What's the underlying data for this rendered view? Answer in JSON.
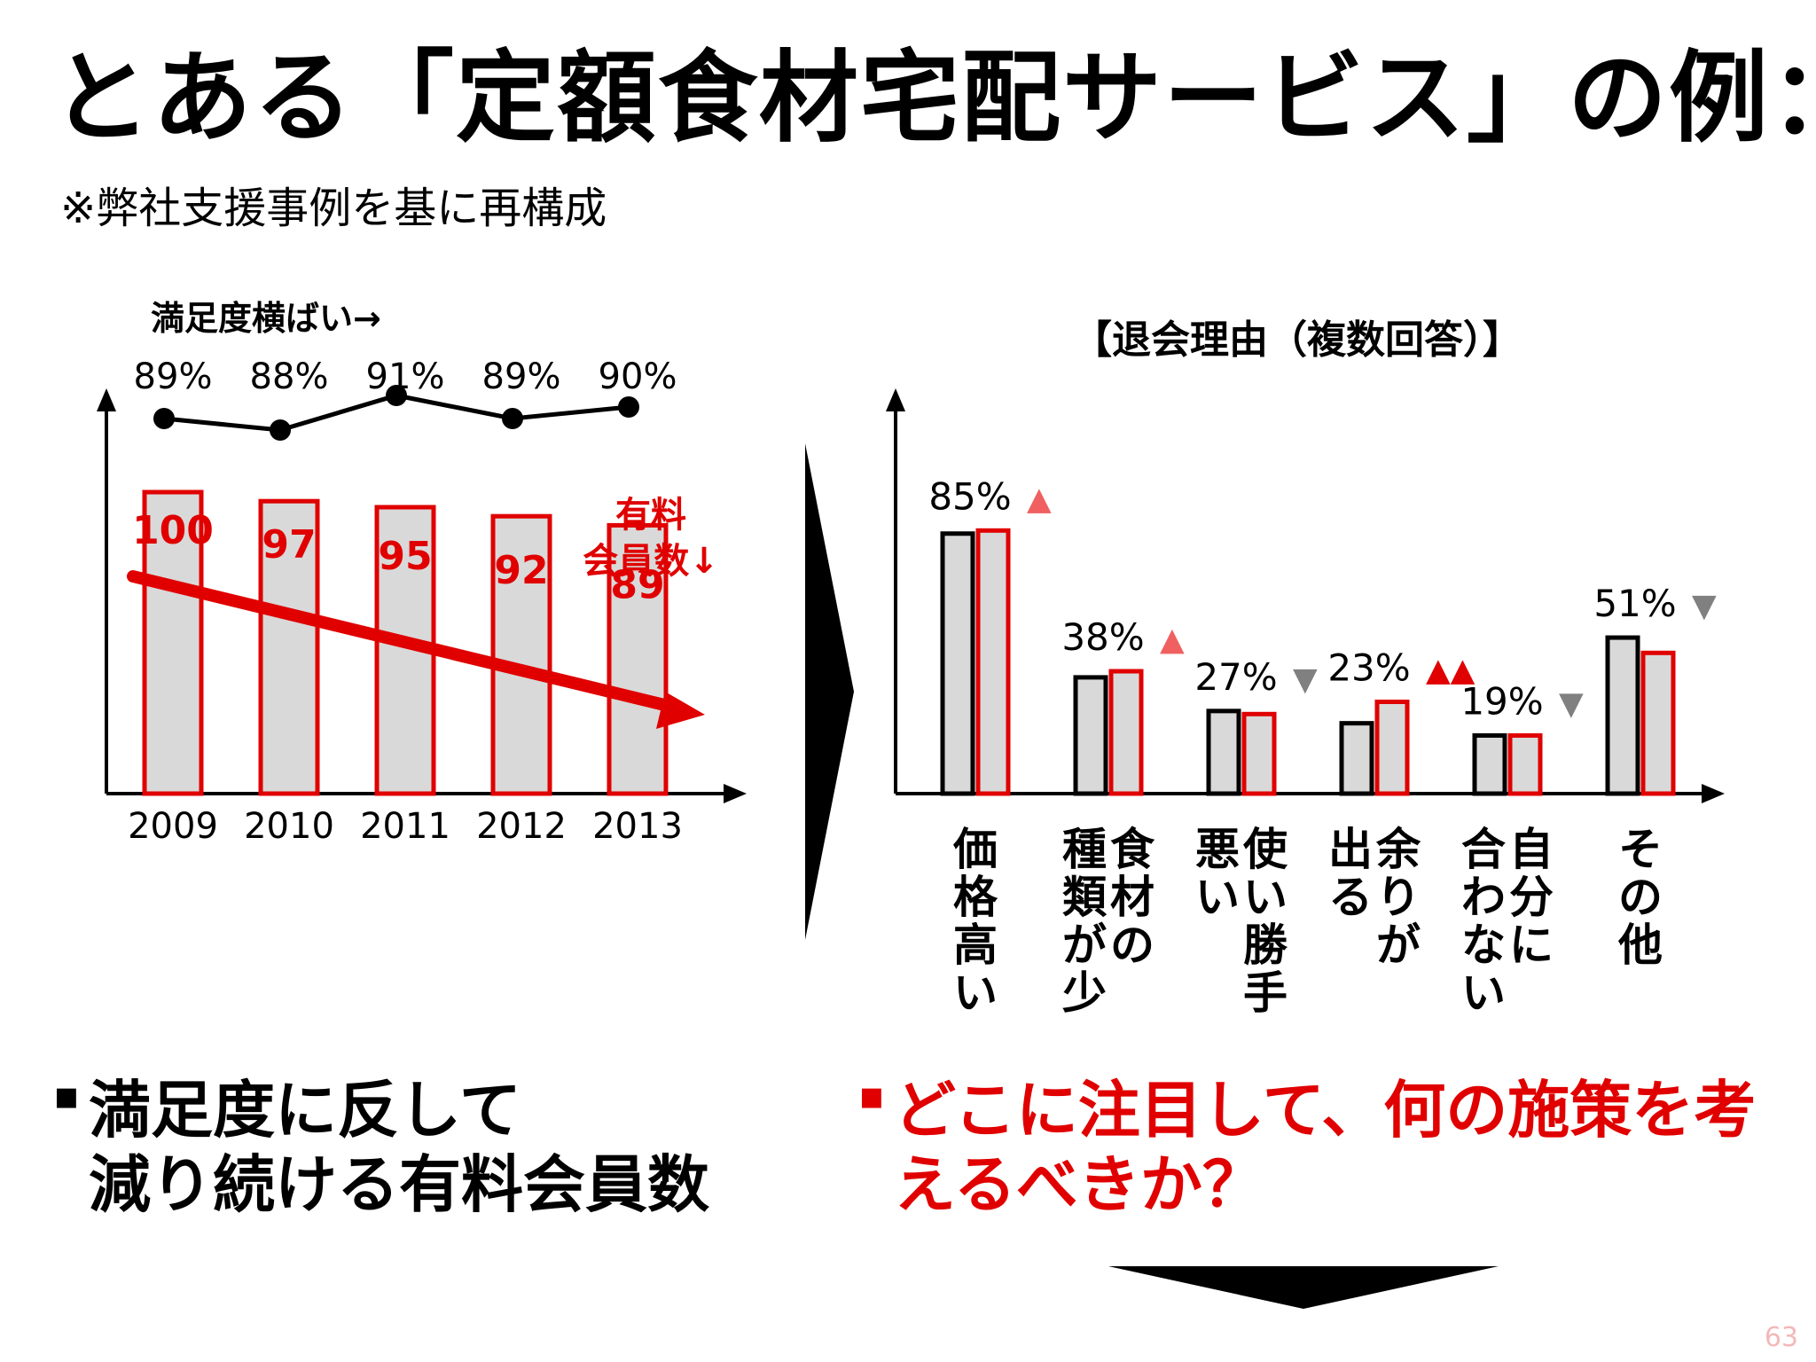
{
  "title": "とある「定額食材宅配サービス」の例：",
  "subtitle": "※弊社支援事例を基に再構成",
  "chart_data": [
    {
      "type": "bar",
      "title": "満足度横ばい→",
      "categories": [
        "2009",
        "2010",
        "2011",
        "2012",
        "2013"
      ],
      "series": [
        {
          "name": "有料会員数↓",
          "values": [
            100,
            97,
            95,
            92,
            89
          ],
          "color": "#e00000"
        }
      ],
      "line": {
        "values": [
          89,
          88,
          91,
          89,
          90
        ],
        "labels": [
          "89%",
          "88%",
          "91%",
          "89%",
          "90%"
        ],
        "color": "#000000"
      },
      "trend_label": "有料会員数↓",
      "ylim": [
        0,
        100
      ]
    },
    {
      "type": "bar",
      "title": "【退会理由（複数回答）】",
      "categories": [
        "価格高い",
        "食材の種類が少",
        "使い勝手悪い",
        "余りが出る",
        "自分に合わない",
        "その他"
      ],
      "category_lines": [
        [
          "価格高い"
        ],
        [
          "食材の",
          "種類が少"
        ],
        [
          "使い勝手",
          "悪い"
        ],
        [
          "余りが",
          "出る"
        ],
        [
          "自分に",
          "合わない"
        ],
        [
          "その他"
        ]
      ],
      "series": [
        {
          "values": [
            85,
            38,
            27,
            23,
            19,
            51
          ],
          "color": "#000000"
        },
        {
          "values": [
            86,
            40,
            26,
            30,
            19,
            46
          ],
          "color": "#e00000"
        }
      ],
      "value_labels": [
        "85%",
        "38%",
        "27%",
        "23%",
        "19%",
        "51%"
      ],
      "change_markers": [
        "▲",
        "▲",
        "▼",
        "▲▲",
        "▼",
        "▼"
      ],
      "ylim": [
        0,
        100
      ]
    }
  ],
  "notes": {
    "left_bullet": "▪",
    "left_text": "満足度に反して\n減り続ける有料会員数",
    "right_bullet": "▪",
    "right_text": "どこに注目して、何の施策を考\nえるべきか？"
  },
  "page_number": "63",
  "colors": {
    "accent": "#e00000",
    "bar_fill": "#d9d9d9",
    "marker_up": "#f06060",
    "marker_down": "#808080"
  }
}
